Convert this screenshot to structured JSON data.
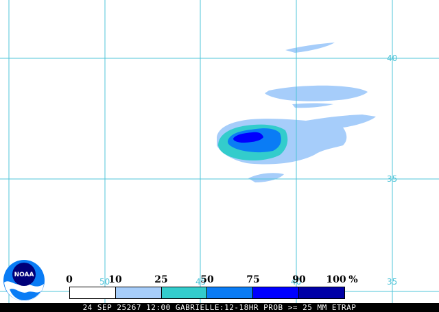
{
  "map": {
    "grid_color": "#4fc4d8",
    "lat_labels": [
      {
        "text": "40"
      },
      {
        "text": "35"
      },
      {
        "text": "35"
      }
    ],
    "lon_labels": [
      {
        "text": "50"
      },
      {
        "text": "45"
      },
      {
        "text": "40"
      }
    ]
  },
  "legend": {
    "ticks": [
      "0",
      "10",
      "25",
      "50",
      "75",
      "90",
      "100"
    ],
    "unit": "%",
    "colors": [
      "#ffffff",
      "#a6cdfa",
      "#33cccc",
      "#0a7cf5",
      "#0000ff",
      "#0000a6"
    ]
  },
  "footer": {
    "text": "24 SEP 25267 12:00 GABRIELLE:12-18HR PROB >= 25 MM ETRAP"
  },
  "logo": {
    "text": "NOAA",
    "icon": "noaa-logo-icon"
  }
}
